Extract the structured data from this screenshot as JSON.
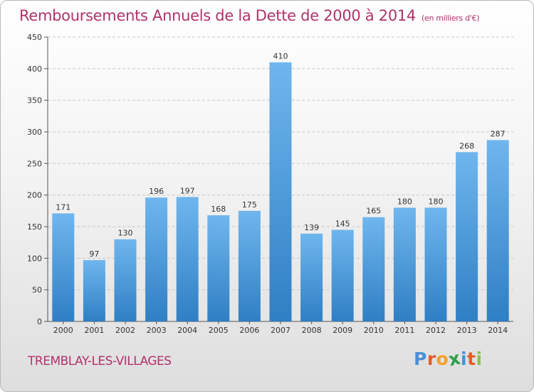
{
  "header": {
    "title": "Remboursements Annuels de la Dette de 2000 à 2014",
    "unit": "(en milliers d'€)"
  },
  "footer": {
    "city": "TREMBLAY-LES-VILLAGES",
    "logo_text": "Proxiti",
    "logo_letters": [
      {
        "char": "P",
        "color": "#4a8fd6"
      },
      {
        "char": "r",
        "color": "#e35c2b"
      },
      {
        "char": "o",
        "color": "#f2a12a"
      },
      {
        "char": "x",
        "color": "#2f9e4a"
      },
      {
        "char": "i",
        "color": "#4a8fd6"
      },
      {
        "char": "t",
        "color": "#e35c2b"
      },
      {
        "char": "i",
        "color": "#8bc34a"
      }
    ]
  },
  "colors": {
    "title": "#b0336b",
    "bar_top": "#6fb6ee",
    "bar_bottom": "#2f7fc4",
    "grid": "#c8c8c8",
    "axis": "#555555"
  },
  "chart_data": {
    "type": "bar",
    "title": "Remboursements Annuels de la Dette de 2000 à 2014",
    "subtitle": "(en milliers d'€)",
    "xlabel": "",
    "ylabel": "",
    "ylim": [
      0,
      450
    ],
    "yticks": [
      0,
      50,
      100,
      150,
      200,
      250,
      300,
      350,
      400,
      450
    ],
    "grid": true,
    "categories": [
      "2000",
      "2001",
      "2002",
      "2003",
      "2004",
      "2005",
      "2006",
      "2007",
      "2008",
      "2009",
      "2010",
      "2011",
      "2012",
      "2013",
      "2014"
    ],
    "values": [
      171,
      97,
      130,
      196,
      197,
      168,
      175,
      410,
      139,
      145,
      165,
      180,
      180,
      268,
      287
    ]
  }
}
